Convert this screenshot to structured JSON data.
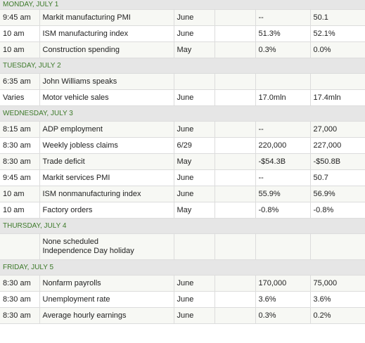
{
  "days": [
    {
      "label": "MONDAY, JULY 1",
      "events": [
        {
          "time": "9:45 am",
          "event": "Markit manufacturing PMI",
          "period": "June",
          "previous_col": "",
          "forecast": "--",
          "actual": "50.1"
        },
        {
          "time": "10 am",
          "event": "ISM manufacturing index",
          "period": "June",
          "previous_col": "",
          "forecast": "51.3%",
          "actual": "52.1%"
        },
        {
          "time": "10 am",
          "event": "Construction spending",
          "period": "May",
          "previous_col": "",
          "forecast": "0.3%",
          "actual": "0.0%"
        }
      ]
    },
    {
      "label": "TUESDAY, JULY 2",
      "events": [
        {
          "time": "6:35 am",
          "event": "John Williams speaks",
          "period": "",
          "previous_col": "",
          "forecast": "",
          "actual": ""
        },
        {
          "time": "Varies",
          "event": "Motor vehicle sales",
          "period": "June",
          "previous_col": "",
          "forecast": "17.0mln",
          "actual": "17.4mln"
        }
      ]
    },
    {
      "label": "WEDNESDAY, JULY 3",
      "events": [
        {
          "time": "8:15 am",
          "event": "ADP employment",
          "period": "June",
          "previous_col": "",
          "forecast": "--",
          "actual": "27,000"
        },
        {
          "time": "8:30 am",
          "event": "Weekly jobless claims",
          "period": "6/29",
          "previous_col": "",
          "forecast": "220,000",
          "actual": "227,000"
        },
        {
          "time": "8:30 am",
          "event": "Trade deficit",
          "period": "May",
          "previous_col": "",
          "forecast": "-$54.3B",
          "actual": "-$50.8B"
        },
        {
          "time": "9:45 am",
          "event": "Markit services PMI",
          "period": "June",
          "previous_col": "",
          "forecast": "--",
          "actual": "50.7"
        },
        {
          "time": "10 am",
          "event": "ISM nonmanufacturing index",
          "period": "June",
          "previous_col": "",
          "forecast": "55.9%",
          "actual": "56.9%"
        },
        {
          "time": "10 am",
          "event": "Factory orders",
          "period": "May",
          "previous_col": "",
          "forecast": "-0.8%",
          "actual": "-0.8%"
        }
      ]
    },
    {
      "label": "THURSDAY, JULY 4",
      "events": [
        {
          "time": "",
          "event": "None scheduled",
          "event_line2": "Independence Day holiday",
          "period": "",
          "previous_col": "",
          "forecast": "",
          "actual": ""
        }
      ]
    },
    {
      "label": "FRIDAY, JULY 5",
      "events": [
        {
          "time": "8:30 am",
          "event": "Nonfarm payrolls",
          "period": "June",
          "previous_col": "",
          "forecast": "170,000",
          "actual": "75,000"
        },
        {
          "time": "8:30 am",
          "event": "Unemployment rate",
          "period": "June",
          "previous_col": "",
          "forecast": "3.6%",
          "actual": "3.6%"
        },
        {
          "time": "8:30 am",
          "event": "Average hourly earnings",
          "period": "June",
          "previous_col": "",
          "forecast": "0.3%",
          "actual": "0.2%"
        }
      ]
    }
  ]
}
